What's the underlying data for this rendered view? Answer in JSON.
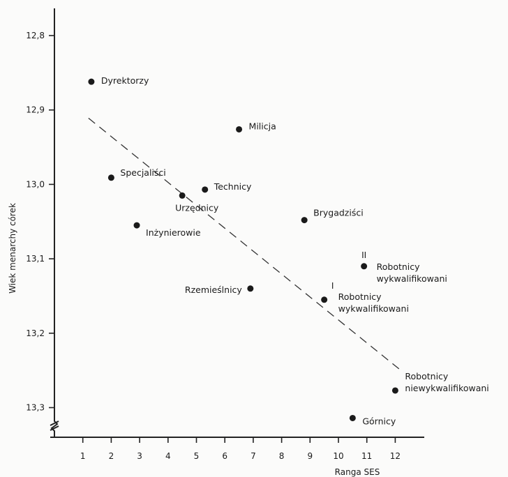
{
  "chart_data": {
    "type": "scatter",
    "title": "",
    "xlabel": "Ranga SES",
    "ylabel": "Wiek menarchy córek",
    "xlim": [
      0,
      12.8
    ],
    "ylim": [
      12.77,
      13.31
    ],
    "y_inverted": true,
    "x_ticks": [
      "1",
      "2",
      "3",
      "4",
      "5",
      "6",
      "7",
      "8",
      "9",
      "10",
      "11",
      "12"
    ],
    "y_ticks": [
      "12,8",
      "12,9",
      "13,0",
      "13,1",
      "13,2",
      "13,3"
    ],
    "y_tick_values": [
      12.8,
      12.9,
      13.0,
      13.1,
      13.2,
      13.3
    ],
    "y_axis_break": true,
    "points": [
      {
        "label": "Dyrektorzy",
        "lines": [
          "Dyrektorzy"
        ],
        "x": 1.3,
        "y": 12.862
      },
      {
        "label": "Milicja",
        "lines": [
          "Milicja"
        ],
        "x": 6.5,
        "y": 12.926
      },
      {
        "label": "Specjaliści",
        "lines": [
          "Specjaliści"
        ],
        "x": 2.0,
        "y": 12.991
      },
      {
        "label": "Technicy",
        "lines": [
          "Technicy"
        ],
        "x": 5.3,
        "y": 13.007
      },
      {
        "label": "Urzędnicy",
        "lines": [
          "Urzędnicy"
        ],
        "x": 4.5,
        "y": 13.015
      },
      {
        "label": "Inżynierowie",
        "lines": [
          "Inżynierowie"
        ],
        "x": 2.9,
        "y": 13.055
      },
      {
        "label": "Brygadziści",
        "lines": [
          "Brygadziści"
        ],
        "x": 8.8,
        "y": 13.048
      },
      {
        "label": "Robotnicy wykwalifikowani",
        "lines": [
          "Robotnicy",
          "wykwalifikowani"
        ],
        "x": 10.9,
        "y": 13.11,
        "marker": "II"
      },
      {
        "label": "Rzemieślnicy",
        "lines": [
          "Rzemieślnicy"
        ],
        "x": 6.9,
        "y": 13.14
      },
      {
        "label": "Robotnicy wykwalifikowani",
        "lines": [
          "Robotnicy",
          "wykwalifikowani"
        ],
        "x": 9.5,
        "y": 13.155,
        "marker": "I"
      },
      {
        "label": "Robotnicy niewykwalifikowani",
        "lines": [
          "Robotnicy",
          "niewykwalifikowani"
        ],
        "x": 12.0,
        "y": 13.277
      },
      {
        "label": "Górnicy",
        "lines": [
          "Górnicy"
        ],
        "x": 10.5,
        "y": 13.314
      }
    ],
    "trendline": {
      "style": "dashed",
      "x": [
        1.2,
        12.2
      ],
      "y": [
        12.911,
        13.25
      ]
    },
    "grid": false,
    "legend": "none"
  }
}
